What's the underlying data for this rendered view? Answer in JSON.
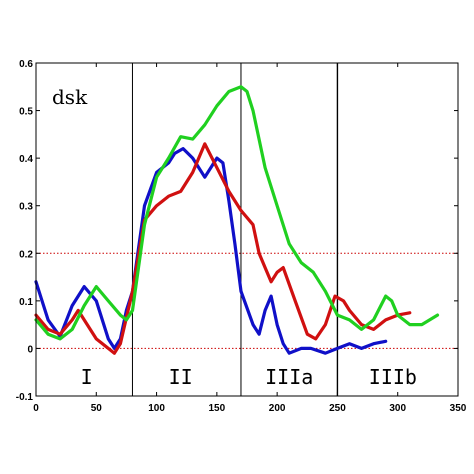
{
  "chart_data": {
    "type": "line",
    "annotation": "dsk",
    "title": "",
    "xlabel": "",
    "ylabel": "",
    "xlim": [
      0,
      350
    ],
    "ylim": [
      -0.1,
      0.6
    ],
    "x_ticks": [
      0,
      50,
      100,
      150,
      200,
      250,
      300,
      350
    ],
    "y_ticks": [
      -0.1,
      0,
      0.1,
      0.2,
      0.3,
      0.4,
      0.5,
      0.6
    ],
    "x_tick_labels": [
      "0",
      "50",
      "100",
      "150",
      "200",
      "250",
      "300",
      "350"
    ],
    "y_tick_labels": [
      "-0.1",
      "0",
      "0.1",
      "0.2",
      "0.3",
      "0.4",
      "0.5",
      "0.6"
    ],
    "grid": false,
    "legend": "none",
    "reference_lines": [
      {
        "y": 0.2,
        "style": "dotted",
        "color": "#cc0000"
      },
      {
        "y": 0.0,
        "style": "dotted",
        "color": "#cc0000"
      }
    ],
    "dividers": [
      {
        "x": 80
      },
      {
        "x": 170
      },
      {
        "x": 250
      }
    ],
    "region_labels": [
      {
        "text": "I",
        "x": 42
      },
      {
        "text": "II",
        "x": 120
      },
      {
        "text": "IIIa",
        "x": 210
      },
      {
        "text": "IIIb",
        "x": 296
      }
    ],
    "region_label_y": -0.06,
    "series": [
      {
        "color": "#1010c8",
        "points": [
          [
            0,
            0.14
          ],
          [
            10,
            0.06
          ],
          [
            20,
            0.025
          ],
          [
            30,
            0.09
          ],
          [
            40,
            0.13
          ],
          [
            50,
            0.1
          ],
          [
            55,
            0.06
          ],
          [
            60,
            0.02
          ],
          [
            65,
            0.0
          ],
          [
            70,
            0.02
          ],
          [
            75,
            0.08
          ],
          [
            80,
            0.12
          ],
          [
            90,
            0.3
          ],
          [
            100,
            0.37
          ],
          [
            110,
            0.39
          ],
          [
            115,
            0.41
          ],
          [
            122,
            0.42
          ],
          [
            130,
            0.4
          ],
          [
            140,
            0.36
          ],
          [
            150,
            0.4
          ],
          [
            155,
            0.39
          ],
          [
            160,
            0.31
          ],
          [
            165,
            0.22
          ],
          [
            170,
            0.12
          ],
          [
            180,
            0.05
          ],
          [
            185,
            0.03
          ],
          [
            190,
            0.08
          ],
          [
            195,
            0.11
          ],
          [
            200,
            0.05
          ],
          [
            205,
            0.01
          ],
          [
            210,
            -0.01
          ],
          [
            220,
            0.0
          ],
          [
            228,
            0.0
          ],
          [
            240,
            -0.01
          ],
          [
            250,
            0.0
          ],
          [
            260,
            0.01
          ],
          [
            270,
            0.0
          ],
          [
            280,
            0.01
          ],
          [
            290,
            0.015
          ]
        ]
      },
      {
        "color": "#d01010",
        "points": [
          [
            0,
            0.07
          ],
          [
            10,
            0.04
          ],
          [
            20,
            0.03
          ],
          [
            30,
            0.06
          ],
          [
            35,
            0.08
          ],
          [
            40,
            0.06
          ],
          [
            50,
            0.02
          ],
          [
            60,
            0.0
          ],
          [
            65,
            -0.01
          ],
          [
            70,
            0.01
          ],
          [
            80,
            0.12
          ],
          [
            90,
            0.27
          ],
          [
            100,
            0.3
          ],
          [
            110,
            0.32
          ],
          [
            120,
            0.33
          ],
          [
            130,
            0.37
          ],
          [
            140,
            0.43
          ],
          [
            150,
            0.38
          ],
          [
            160,
            0.33
          ],
          [
            170,
            0.29
          ],
          [
            180,
            0.26
          ],
          [
            185,
            0.2
          ],
          [
            190,
            0.17
          ],
          [
            195,
            0.14
          ],
          [
            200,
            0.16
          ],
          [
            205,
            0.17
          ],
          [
            215,
            0.1
          ],
          [
            225,
            0.03
          ],
          [
            232,
            0.02
          ],
          [
            240,
            0.05
          ],
          [
            248,
            0.11
          ],
          [
            255,
            0.1
          ],
          [
            260,
            0.08
          ],
          [
            270,
            0.05
          ],
          [
            280,
            0.04
          ],
          [
            290,
            0.06
          ],
          [
            300,
            0.07
          ],
          [
            310,
            0.075
          ]
        ]
      },
      {
        "color": "#20d020",
        "points": [
          [
            0,
            0.06
          ],
          [
            10,
            0.03
          ],
          [
            20,
            0.02
          ],
          [
            30,
            0.04
          ],
          [
            40,
            0.09
          ],
          [
            50,
            0.13
          ],
          [
            60,
            0.1
          ],
          [
            70,
            0.07
          ],
          [
            75,
            0.06
          ],
          [
            80,
            0.08
          ],
          [
            90,
            0.26
          ],
          [
            100,
            0.36
          ],
          [
            110,
            0.4
          ],
          [
            120,
            0.445
          ],
          [
            130,
            0.44
          ],
          [
            140,
            0.47
          ],
          [
            150,
            0.51
          ],
          [
            160,
            0.54
          ],
          [
            170,
            0.55
          ],
          [
            175,
            0.54
          ],
          [
            180,
            0.5
          ],
          [
            190,
            0.38
          ],
          [
            200,
            0.3
          ],
          [
            210,
            0.22
          ],
          [
            220,
            0.18
          ],
          [
            230,
            0.16
          ],
          [
            240,
            0.12
          ],
          [
            250,
            0.07
          ],
          [
            260,
            0.06
          ],
          [
            270,
            0.04
          ],
          [
            280,
            0.06
          ],
          [
            290,
            0.11
          ],
          [
            295,
            0.1
          ],
          [
            300,
            0.07
          ],
          [
            310,
            0.05
          ],
          [
            320,
            0.05
          ],
          [
            333,
            0.07
          ]
        ]
      }
    ]
  }
}
